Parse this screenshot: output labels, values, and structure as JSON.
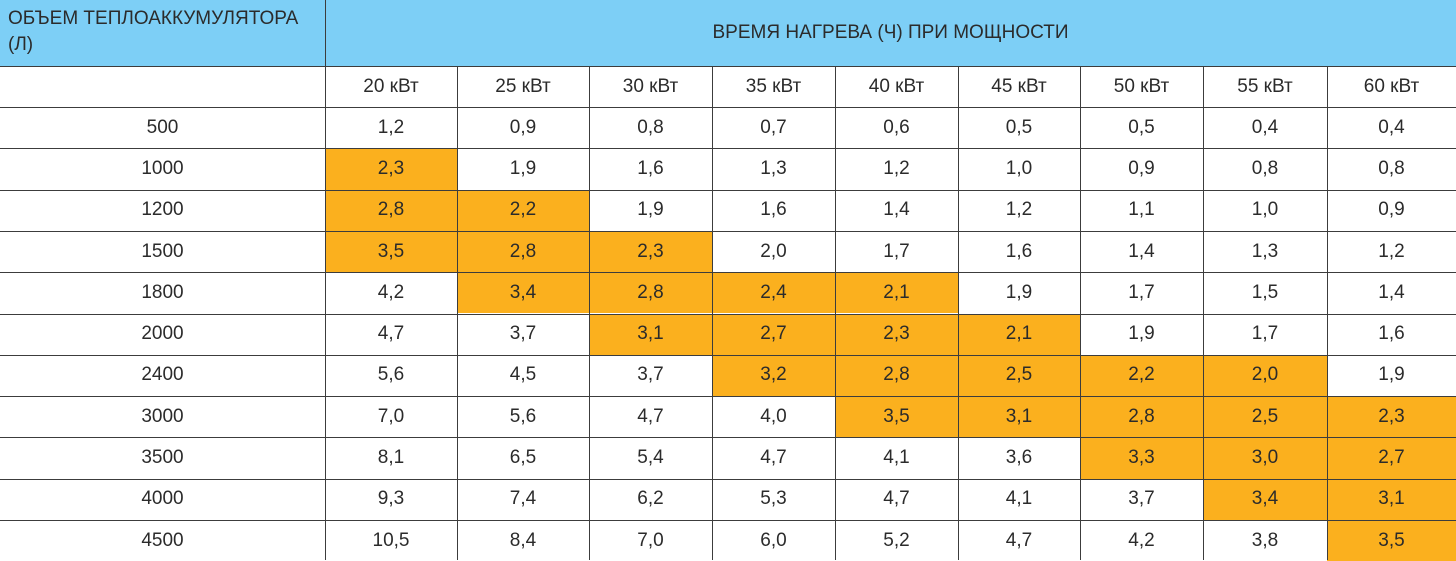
{
  "header": {
    "volume_title": "ОБЪЕМ ТЕПЛОАККУМУЛЯТОРА (Л)",
    "heating_title": "ВРЕМЯ НАГРЕВА (Ч) ПРИ МОЩНОСТИ"
  },
  "columns": [
    "20 кВт",
    "25 кВт",
    "30 кВт",
    "35 кВт",
    "40 кВт",
    "45 кВт",
    "50 кВт",
    "55 кВт",
    "60 кВт"
  ],
  "rows": [
    {
      "volume": "500",
      "values": [
        "1,2",
        "0,9",
        "0,8",
        "0,7",
        "0,6",
        "0,5",
        "0,5",
        "0,4",
        "0,4"
      ],
      "highlight": []
    },
    {
      "volume": "1000",
      "values": [
        "2,3",
        "1,9",
        "1,6",
        "1,3",
        "1,2",
        "1,0",
        "0,9",
        "0,8",
        "0,8"
      ],
      "highlight": [
        0
      ]
    },
    {
      "volume": "1200",
      "values": [
        "2,8",
        "2,2",
        "1,9",
        "1,6",
        "1,4",
        "1,2",
        "1,1",
        "1,0",
        "0,9"
      ],
      "highlight": [
        0,
        1
      ]
    },
    {
      "volume": "1500",
      "values": [
        "3,5",
        "2,8",
        "2,3",
        "2,0",
        "1,7",
        "1,6",
        "1,4",
        "1,3",
        "1,2"
      ],
      "highlight": [
        0,
        1,
        2
      ]
    },
    {
      "volume": "1800",
      "values": [
        "4,2",
        "3,4",
        "2,8",
        "2,4",
        "2,1",
        "1,9",
        "1,7",
        "1,5",
        "1,4"
      ],
      "highlight": [
        1,
        2,
        3,
        4
      ]
    },
    {
      "volume": "2000",
      "values": [
        "4,7",
        "3,7",
        "3,1",
        "2,7",
        "2,3",
        "2,1",
        "1,9",
        "1,7",
        "1,6"
      ],
      "highlight": [
        2,
        3,
        4,
        5
      ]
    },
    {
      "volume": "2400",
      "values": [
        "5,6",
        "4,5",
        "3,7",
        "3,2",
        "2,8",
        "2,5",
        "2,2",
        "2,0",
        "1,9"
      ],
      "highlight": [
        3,
        4,
        5,
        6,
        7
      ]
    },
    {
      "volume": "3000",
      "values": [
        "7,0",
        "5,6",
        "4,7",
        "4,0",
        "3,5",
        "3,1",
        "2,8",
        "2,5",
        "2,3"
      ],
      "highlight": [
        4,
        5,
        6,
        7,
        8
      ]
    },
    {
      "volume": "3500",
      "values": [
        "8,1",
        "6,5",
        "5,4",
        "4,7",
        "4,1",
        "3,6",
        "3,3",
        "3,0",
        "2,7"
      ],
      "highlight": [
        6,
        7,
        8
      ]
    },
    {
      "volume": "4000",
      "values": [
        "9,3",
        "7,4",
        "6,2",
        "5,3",
        "4,7",
        "4,1",
        "3,7",
        "3,4",
        "3,1"
      ],
      "highlight": [
        7,
        8
      ]
    },
    {
      "volume": "4500",
      "values": [
        "10,5",
        "8,4",
        "7,0",
        "6,0",
        "5,2",
        "4,7",
        "4,2",
        "3,8",
        "3,5"
      ],
      "highlight": [
        8
      ]
    }
  ],
  "colors": {
    "header_bg": "#7dcff6",
    "highlight": "#fbb01e",
    "grid": "#3c3c3c"
  }
}
